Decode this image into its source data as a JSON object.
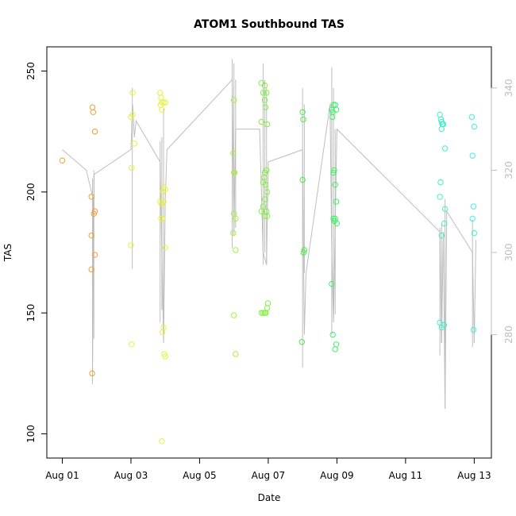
{
  "chart_data": {
    "type": "scatter",
    "title": "ATOM1 Southbound TAS",
    "xlabel": "Date",
    "ylabel": "TAS",
    "x_ticks": [
      {
        "day": 1,
        "label": "Aug 01"
      },
      {
        "day": 3,
        "label": "Aug 03"
      },
      {
        "day": 5,
        "label": "Aug 05"
      },
      {
        "day": 7,
        "label": "Aug 07"
      },
      {
        "day": 9,
        "label": "Aug 09"
      },
      {
        "day": 11,
        "label": "Aug 11"
      },
      {
        "day": 13,
        "label": "Aug 13"
      }
    ],
    "xlim": [
      0.55,
      13.5
    ],
    "ylim": [
      90,
      260
    ],
    "y_ticks": [
      100,
      150,
      200,
      250
    ],
    "secondary_axis": {
      "ylim": [
        250,
        350
      ],
      "ticks": [
        280,
        300,
        320,
        340
      ],
      "color": "#bdbdbd"
    },
    "series": [
      {
        "color": "#f0a033",
        "points": [
          [
            1.0,
            213
          ],
          [
            1.88,
            235
          ],
          [
            1.9,
            233
          ],
          [
            1.95,
            225
          ],
          [
            1.85,
            198
          ],
          [
            1.95,
            192
          ],
          [
            1.92,
            191
          ],
          [
            1.85,
            182
          ],
          [
            1.95,
            174
          ],
          [
            1.85,
            168
          ],
          [
            1.87,
            125
          ]
        ]
      },
      {
        "color": "#e8f040",
        "points": [
          [
            3.05,
            241
          ],
          [
            3.05,
            232
          ],
          [
            3.0,
            231
          ],
          [
            3.1,
            220
          ],
          [
            3.02,
            210
          ],
          [
            3.0,
            178
          ],
          [
            3.02,
            137
          ],
          [
            3.85,
            241
          ],
          [
            3.88,
            239
          ],
          [
            3.9,
            237
          ],
          [
            3.95,
            237
          ],
          [
            4.0,
            237
          ],
          [
            3.87,
            236
          ],
          [
            3.9,
            234
          ],
          [
            3.95,
            202
          ],
          [
            4.0,
            201
          ],
          [
            3.93,
            200
          ],
          [
            3.85,
            196
          ],
          [
            3.95,
            196
          ],
          [
            3.9,
            195
          ],
          [
            3.88,
            189
          ],
          [
            3.92,
            189
          ],
          [
            4.0,
            177
          ],
          [
            3.95,
            144
          ],
          [
            3.92,
            142
          ],
          [
            3.97,
            133
          ],
          [
            4.0,
            132
          ],
          [
            3.9,
            97
          ]
        ]
      },
      {
        "color": "#a6f040",
        "points": [
          [
            6.0,
            238
          ],
          [
            5.98,
            216
          ],
          [
            6.0,
            208
          ],
          [
            6.02,
            208
          ],
          [
            6.0,
            191
          ],
          [
            6.05,
            189
          ],
          [
            5.98,
            183
          ],
          [
            6.05,
            176
          ],
          [
            6.0,
            149
          ],
          [
            6.05,
            133
          ]
        ]
      },
      {
        "color": "#80f040",
        "points": [
          [
            6.8,
            245
          ],
          [
            6.9,
            244
          ],
          [
            6.85,
            241
          ],
          [
            6.95,
            241
          ],
          [
            6.9,
            238
          ],
          [
            6.92,
            235
          ],
          [
            6.8,
            229
          ],
          [
            6.97,
            228
          ],
          [
            6.95,
            209
          ],
          [
            6.9,
            208
          ],
          [
            6.88,
            206
          ],
          [
            6.85,
            204
          ],
          [
            6.92,
            203
          ],
          [
            6.97,
            200
          ],
          [
            6.9,
            197
          ],
          [
            6.85,
            194
          ],
          [
            6.95,
            192
          ],
          [
            6.8,
            192
          ],
          [
            6.9,
            190
          ],
          [
            6.97,
            190
          ],
          [
            6.99,
            154
          ],
          [
            6.97,
            152
          ],
          [
            6.93,
            150
          ],
          [
            6.85,
            150
          ],
          [
            6.9,
            150
          ],
          [
            6.8,
            150
          ]
        ]
      },
      {
        "color": "#45f040",
        "points": [
          [
            8.0,
            233
          ],
          [
            8.02,
            230
          ],
          [
            8.0,
            205
          ],
          [
            8.05,
            176
          ],
          [
            8.03,
            175
          ],
          [
            7.98,
            138
          ]
        ]
      },
      {
        "color": "#40f06a",
        "points": [
          [
            8.9,
            236
          ],
          [
            8.95,
            236
          ],
          [
            8.85,
            234
          ],
          [
            8.98,
            234
          ],
          [
            8.88,
            233
          ],
          [
            8.87,
            231
          ],
          [
            8.92,
            209
          ],
          [
            8.9,
            208
          ],
          [
            8.95,
            203
          ],
          [
            8.98,
            196
          ],
          [
            8.9,
            189
          ],
          [
            8.95,
            189
          ],
          [
            8.93,
            188
          ],
          [
            9.0,
            187
          ],
          [
            8.85,
            162
          ],
          [
            8.88,
            141
          ],
          [
            8.98,
            137
          ],
          [
            8.95,
            135
          ]
        ]
      },
      {
        "color": "#40f0c8",
        "points": [
          [
            12.0,
            232
          ],
          [
            12.03,
            230
          ],
          [
            12.05,
            229
          ],
          [
            12.07,
            228
          ],
          [
            12.08,
            228
          ],
          [
            12.1,
            228
          ],
          [
            12.05,
            226
          ],
          [
            12.15,
            218
          ],
          [
            12.02,
            204
          ],
          [
            12.0,
            198
          ],
          [
            12.15,
            193
          ],
          [
            12.13,
            187
          ],
          [
            12.05,
            182
          ],
          [
            12.0,
            146
          ],
          [
            12.12,
            145
          ],
          [
            12.05,
            144
          ]
        ]
      },
      {
        "color": "#40f0e0",
        "points": [
          [
            12.93,
            231
          ],
          [
            13.0,
            227
          ],
          [
            12.95,
            215
          ],
          [
            12.98,
            194
          ],
          [
            12.95,
            189
          ],
          [
            13.0,
            183
          ],
          [
            12.98,
            143
          ]
        ]
      }
    ],
    "secondary_line": {
      "color": "#bdbdbd",
      "points": [
        [
          1.0,
          325
        ],
        [
          1.7,
          320
        ],
        [
          1.9,
          313
        ],
        [
          1.88,
          270
        ],
        [
          1.93,
          319
        ],
        [
          3.0,
          325
        ],
        [
          3.05,
          336
        ],
        [
          3.1,
          328
        ],
        [
          3.15,
          332
        ],
        [
          3.85,
          322
        ],
        [
          3.95,
          278
        ],
        [
          4.0,
          313
        ],
        [
          4.05,
          325
        ],
        [
          5.95,
          342
        ],
        [
          6.0,
          305
        ],
        [
          6.05,
          330
        ],
        [
          6.75,
          330
        ],
        [
          6.85,
          300
        ],
        [
          6.95,
          297
        ],
        [
          7.0,
          322
        ],
        [
          8.0,
          325
        ],
        [
          8.05,
          280
        ],
        [
          8.1,
          295
        ],
        [
          8.8,
          336
        ],
        [
          8.85,
          300
        ],
        [
          8.9,
          283
        ],
        [
          9.0,
          330
        ],
        [
          12.0,
          305
        ],
        [
          12.05,
          278
        ],
        [
          12.1,
          305
        ],
        [
          12.15,
          262
        ],
        [
          12.2,
          310
        ],
        [
          12.95,
          300
        ],
        [
          13.0,
          278
        ],
        [
          13.05,
          303
        ]
      ],
      "spikes": [
        {
          "x": 1.88,
          "y1": 268,
          "y2": 318
        },
        {
          "x": 1.92,
          "y1": 279,
          "y2": 320
        },
        {
          "x": 3.04,
          "y1": 296,
          "y2": 340
        },
        {
          "x": 3.85,
          "y1": 283,
          "y2": 327
        },
        {
          "x": 3.9,
          "y1": 286,
          "y2": 328
        },
        {
          "x": 3.95,
          "y1": 278,
          "y2": 335
        },
        {
          "x": 5.95,
          "y1": 301,
          "y2": 347
        },
        {
          "x": 6.0,
          "y1": 304,
          "y2": 346
        },
        {
          "x": 6.05,
          "y1": 306,
          "y2": 342
        },
        {
          "x": 6.85,
          "y1": 297,
          "y2": 346
        },
        {
          "x": 6.9,
          "y1": 300,
          "y2": 342
        },
        {
          "x": 6.95,
          "y1": 297,
          "y2": 340
        },
        {
          "x": 8.0,
          "y1": 272,
          "y2": 340
        },
        {
          "x": 8.05,
          "y1": 295,
          "y2": 336
        },
        {
          "x": 8.85,
          "y1": 280,
          "y2": 345
        },
        {
          "x": 8.9,
          "y1": 283,
          "y2": 340
        },
        {
          "x": 8.95,
          "y1": 285,
          "y2": 330
        },
        {
          "x": 12.0,
          "y1": 275,
          "y2": 306
        },
        {
          "x": 12.05,
          "y1": 278,
          "y2": 307
        },
        {
          "x": 12.15,
          "y1": 262,
          "y2": 313
        },
        {
          "x": 12.95,
          "y1": 277,
          "y2": 308
        }
      ]
    }
  }
}
